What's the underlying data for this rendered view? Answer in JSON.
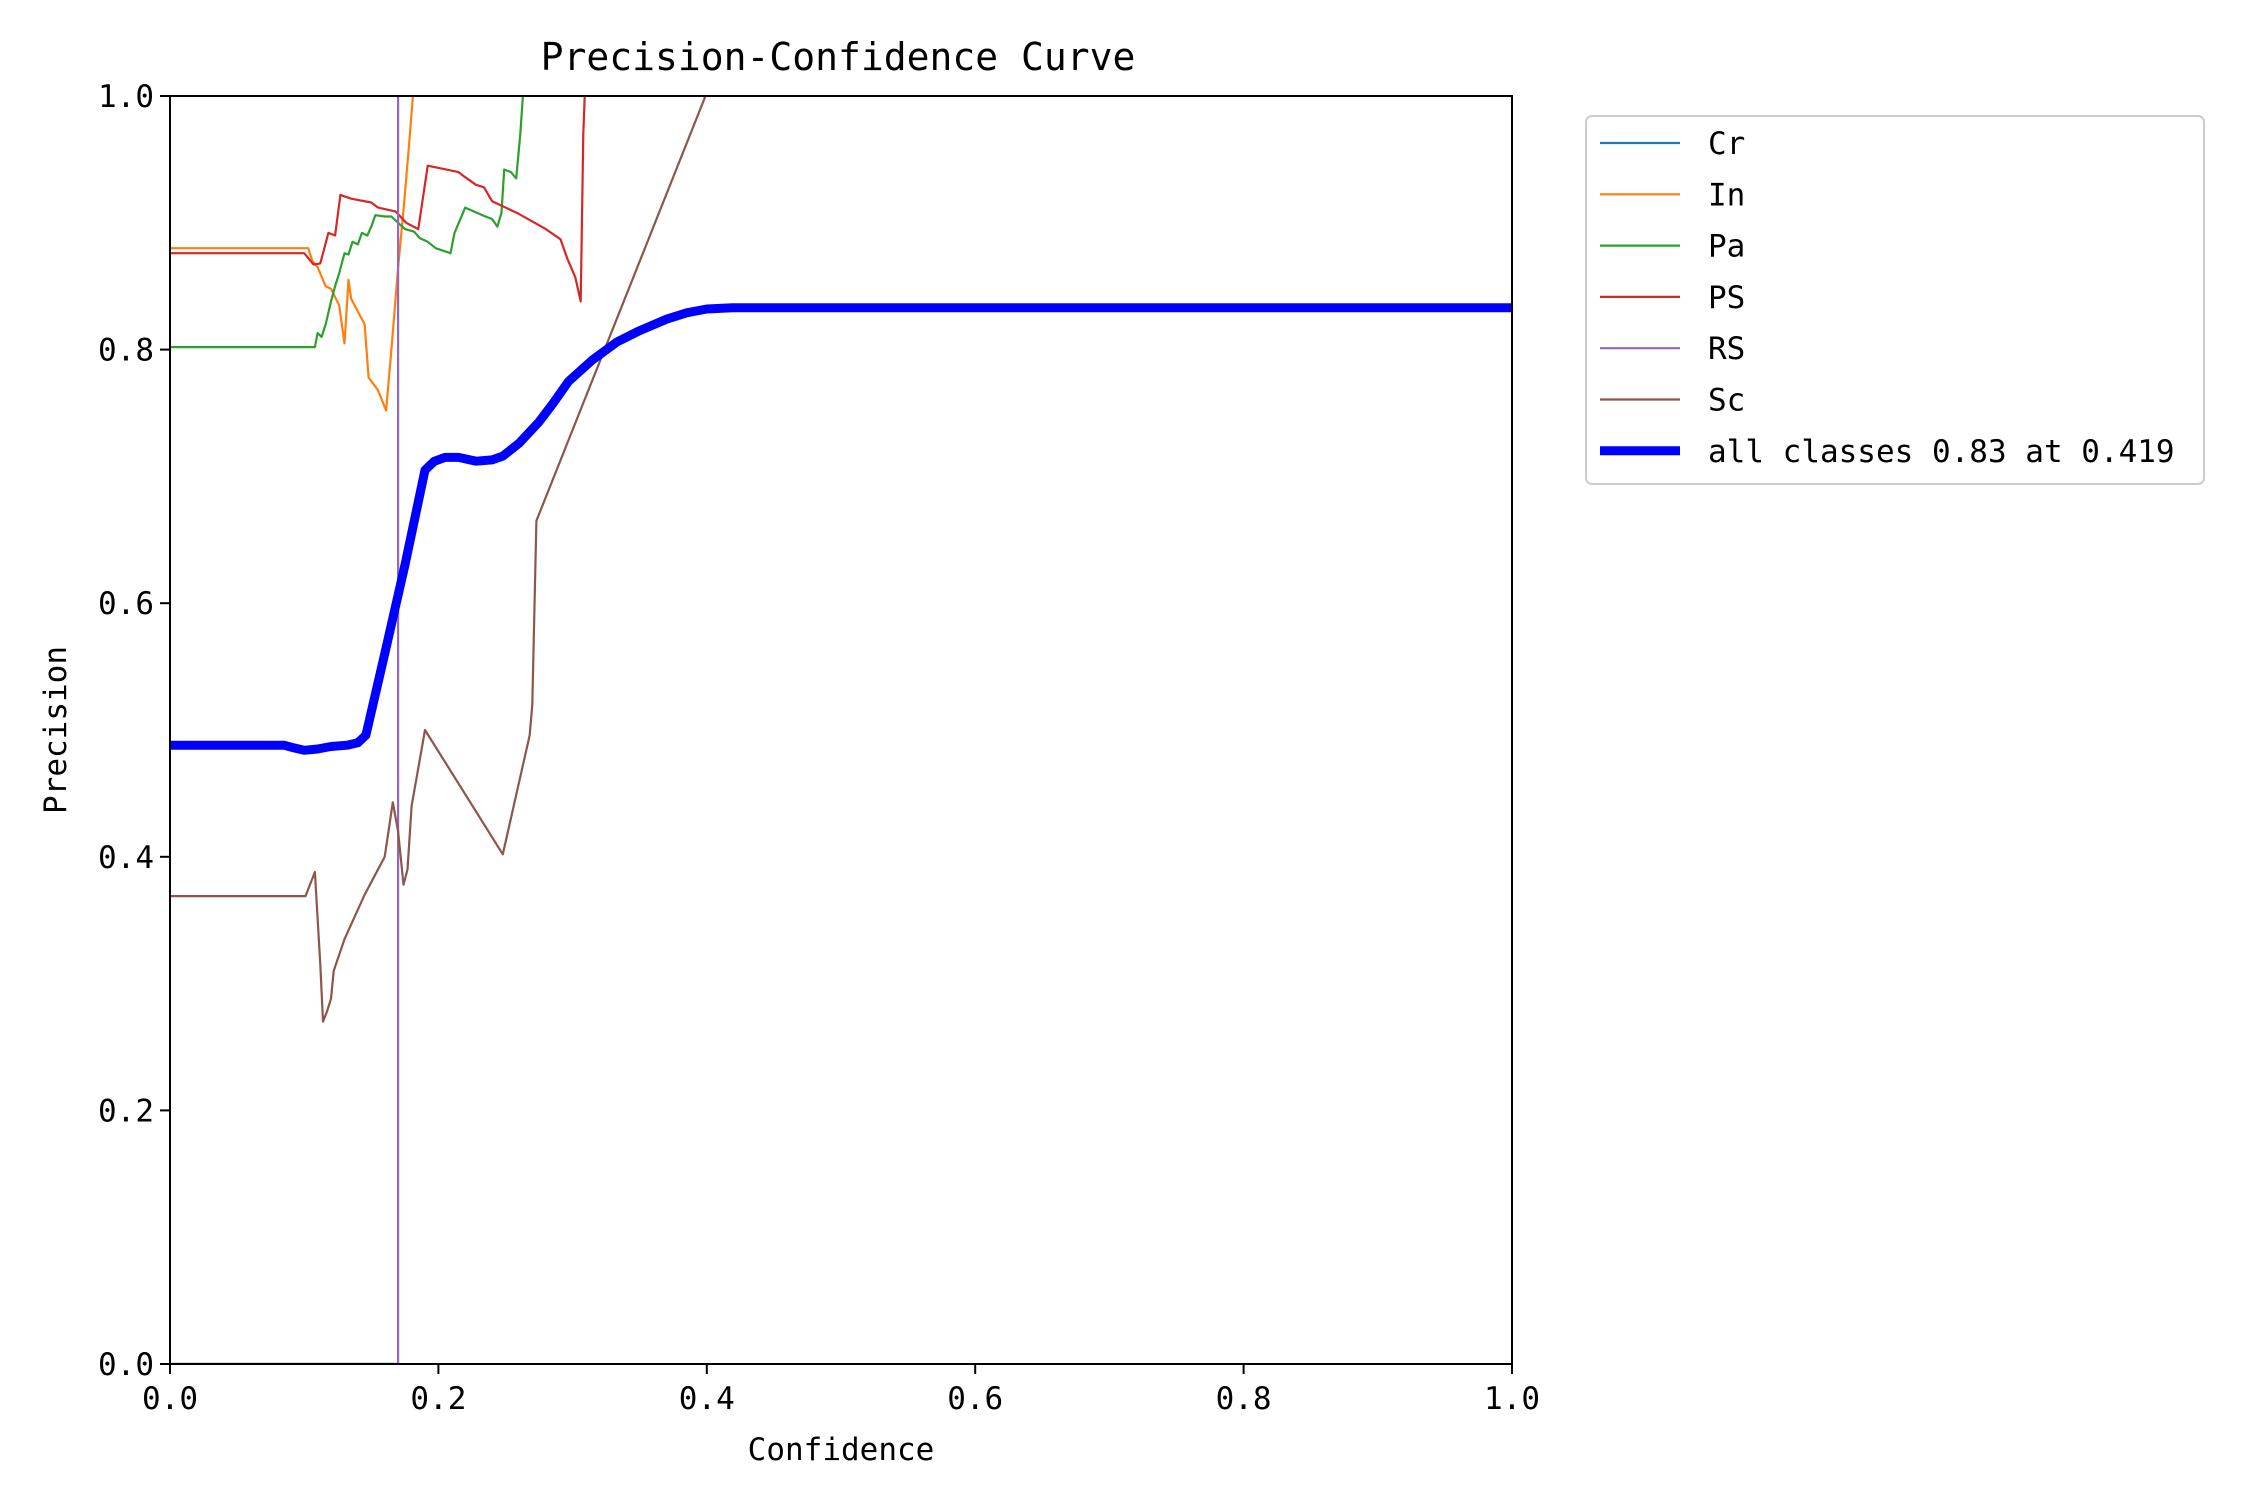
{
  "chart_data": {
    "type": "line",
    "title": "Precision-Confidence Curve",
    "xlabel": "Confidence",
    "ylabel": "Precision",
    "xlim": [
      0,
      1
    ],
    "ylim": [
      0,
      1
    ],
    "xticks": [
      "0.0",
      "0.2",
      "0.4",
      "0.6",
      "0.8",
      "1.0"
    ],
    "yticks": [
      "0.0",
      "0.2",
      "0.4",
      "0.6",
      "0.8",
      "1.0"
    ],
    "grid": false,
    "legend_position": "outside-top-right",
    "series": [
      {
        "name": "Cr",
        "color": "#1f77b4",
        "points": [
          [
            0.0,
            0.0
          ],
          [
            0.17,
            0.0
          ]
        ]
      },
      {
        "name": "In",
        "color": "#ff7f0e",
        "points": [
          [
            0.0,
            0.88
          ],
          [
            0.103,
            0.88
          ],
          [
            0.106,
            0.87
          ],
          [
            0.11,
            0.865
          ],
          [
            0.116,
            0.85
          ],
          [
            0.12,
            0.848
          ],
          [
            0.126,
            0.835
          ],
          [
            0.13,
            0.805
          ],
          [
            0.133,
            0.855
          ],
          [
            0.135,
            0.84
          ],
          [
            0.14,
            0.83
          ],
          [
            0.145,
            0.82
          ],
          [
            0.148,
            0.778
          ],
          [
            0.155,
            0.768
          ],
          [
            0.161,
            0.752
          ],
          [
            0.165,
            0.8
          ],
          [
            0.17,
            0.865
          ],
          [
            0.174,
            0.91
          ],
          [
            0.178,
            0.96
          ],
          [
            0.181,
            1.0
          ]
        ]
      },
      {
        "name": "Pa",
        "color": "#2ca02c",
        "points": [
          [
            0.0,
            0.802
          ],
          [
            0.108,
            0.802
          ],
          [
            0.11,
            0.813
          ],
          [
            0.113,
            0.81
          ],
          [
            0.116,
            0.82
          ],
          [
            0.12,
            0.838
          ],
          [
            0.123,
            0.85
          ],
          [
            0.126,
            0.86
          ],
          [
            0.13,
            0.876
          ],
          [
            0.133,
            0.875
          ],
          [
            0.136,
            0.885
          ],
          [
            0.14,
            0.883
          ],
          [
            0.143,
            0.892
          ],
          [
            0.147,
            0.89
          ],
          [
            0.15,
            0.897
          ],
          [
            0.153,
            0.906
          ],
          [
            0.16,
            0.905
          ],
          [
            0.165,
            0.905
          ],
          [
            0.17,
            0.9
          ],
          [
            0.175,
            0.895
          ],
          [
            0.182,
            0.893
          ],
          [
            0.186,
            0.888
          ],
          [
            0.192,
            0.885
          ],
          [
            0.198,
            0.88
          ],
          [
            0.209,
            0.876
          ],
          [
            0.212,
            0.892
          ],
          [
            0.22,
            0.912
          ],
          [
            0.235,
            0.905
          ],
          [
            0.24,
            0.903
          ],
          [
            0.244,
            0.897
          ],
          [
            0.247,
            0.908
          ],
          [
            0.249,
            0.942
          ],
          [
            0.254,
            0.94
          ],
          [
            0.258,
            0.935
          ],
          [
            0.261,
            0.97
          ],
          [
            0.263,
            1.0
          ]
        ]
      },
      {
        "name": "PS",
        "color": "#d62728",
        "points": [
          [
            0.0,
            0.876
          ],
          [
            0.1,
            0.876
          ],
          [
            0.107,
            0.867
          ],
          [
            0.112,
            0.868
          ],
          [
            0.118,
            0.892
          ],
          [
            0.123,
            0.89
          ],
          [
            0.127,
            0.922
          ],
          [
            0.135,
            0.919
          ],
          [
            0.15,
            0.916
          ],
          [
            0.155,
            0.912
          ],
          [
            0.168,
            0.909
          ],
          [
            0.176,
            0.9
          ],
          [
            0.185,
            0.895
          ],
          [
            0.192,
            0.945
          ],
          [
            0.215,
            0.94
          ],
          [
            0.22,
            0.936
          ],
          [
            0.228,
            0.93
          ],
          [
            0.234,
            0.928
          ],
          [
            0.24,
            0.917
          ],
          [
            0.26,
            0.907
          ],
          [
            0.28,
            0.895
          ],
          [
            0.291,
            0.887
          ],
          [
            0.296,
            0.872
          ],
          [
            0.302,
            0.857
          ],
          [
            0.306,
            0.838
          ],
          [
            0.308,
            0.97
          ],
          [
            0.309,
            1.0
          ]
        ]
      },
      {
        "name": "RS",
        "color": "#9467bd",
        "points": [
          [
            0.0,
            0.0
          ],
          [
            0.17,
            0.0
          ],
          [
            0.17,
            1.0
          ]
        ]
      },
      {
        "name": "Sc",
        "color": "#8c564b",
        "points": [
          [
            0.0,
            0.369
          ],
          [
            0.101,
            0.369
          ],
          [
            0.108,
            0.388
          ],
          [
            0.112,
            0.315
          ],
          [
            0.114,
            0.27
          ],
          [
            0.117,
            0.278
          ],
          [
            0.12,
            0.288
          ],
          [
            0.122,
            0.31
          ],
          [
            0.13,
            0.335
          ],
          [
            0.145,
            0.37
          ],
          [
            0.16,
            0.4
          ],
          [
            0.166,
            0.443
          ],
          [
            0.17,
            0.42
          ],
          [
            0.174,
            0.378
          ],
          [
            0.177,
            0.39
          ],
          [
            0.18,
            0.44
          ],
          [
            0.19,
            0.5
          ],
          [
            0.248,
            0.402
          ],
          [
            0.268,
            0.496
          ],
          [
            0.27,
            0.52
          ],
          [
            0.273,
            0.665
          ],
          [
            0.399,
            1.0
          ]
        ]
      },
      {
        "name": "all classes 0.83 at 0.419",
        "color": "#0000ff",
        "thick": true,
        "points": [
          [
            0.0,
            0.488
          ],
          [
            0.085,
            0.488
          ],
          [
            0.092,
            0.486
          ],
          [
            0.1,
            0.484
          ],
          [
            0.11,
            0.485
          ],
          [
            0.12,
            0.487
          ],
          [
            0.132,
            0.488
          ],
          [
            0.14,
            0.49
          ],
          [
            0.146,
            0.496
          ],
          [
            0.16,
            0.56
          ],
          [
            0.175,
            0.63
          ],
          [
            0.19,
            0.705
          ],
          [
            0.197,
            0.712
          ],
          [
            0.205,
            0.715
          ],
          [
            0.215,
            0.715
          ],
          [
            0.228,
            0.712
          ],
          [
            0.24,
            0.713
          ],
          [
            0.248,
            0.716
          ],
          [
            0.26,
            0.726
          ],
          [
            0.275,
            0.743
          ],
          [
            0.285,
            0.757
          ],
          [
            0.297,
            0.775
          ],
          [
            0.315,
            0.792
          ],
          [
            0.333,
            0.806
          ],
          [
            0.35,
            0.815
          ],
          [
            0.37,
            0.824
          ],
          [
            0.385,
            0.829
          ],
          [
            0.4,
            0.832
          ],
          [
            0.419,
            0.833
          ],
          [
            1.0,
            0.833
          ]
        ]
      }
    ]
  }
}
